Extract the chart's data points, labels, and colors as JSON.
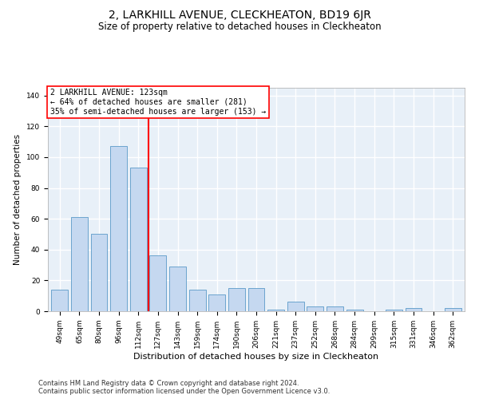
{
  "title": "2, LARKHILL AVENUE, CLECKHEATON, BD19 6JR",
  "subtitle": "Size of property relative to detached houses in Cleckheaton",
  "xlabel": "Distribution of detached houses by size in Cleckheaton",
  "ylabel": "Number of detached properties",
  "categories": [
    "49sqm",
    "65sqm",
    "80sqm",
    "96sqm",
    "112sqm",
    "127sqm",
    "143sqm",
    "159sqm",
    "174sqm",
    "190sqm",
    "206sqm",
    "221sqm",
    "237sqm",
    "252sqm",
    "268sqm",
    "284sqm",
    "299sqm",
    "315sqm",
    "331sqm",
    "346sqm",
    "362sqm"
  ],
  "values": [
    14,
    61,
    50,
    107,
    93,
    36,
    29,
    14,
    11,
    15,
    15,
    1,
    6,
    3,
    3,
    1,
    0,
    1,
    2,
    0,
    2
  ],
  "bar_color": "#c5d8f0",
  "bar_edgecolor": "#5a9ac8",
  "vline_x": 4.5,
  "vline_color": "red",
  "annotation_text": "2 LARKHILL AVENUE: 123sqm\n← 64% of detached houses are smaller (281)\n35% of semi-detached houses are larger (153) →",
  "annotation_box_color": "white",
  "annotation_box_edgecolor": "red",
  "ylim": [
    0,
    145
  ],
  "yticks": [
    0,
    20,
    40,
    60,
    80,
    100,
    120,
    140
  ],
  "background_color": "#e8f0f8",
  "grid_color": "white",
  "footer1": "Contains HM Land Registry data © Crown copyright and database right 2024.",
  "footer2": "Contains public sector information licensed under the Open Government Licence v3.0.",
  "title_fontsize": 10,
  "subtitle_fontsize": 8.5,
  "xlabel_fontsize": 8,
  "ylabel_fontsize": 7.5,
  "tick_fontsize": 6.5,
  "annotation_fontsize": 7,
  "footer_fontsize": 6
}
